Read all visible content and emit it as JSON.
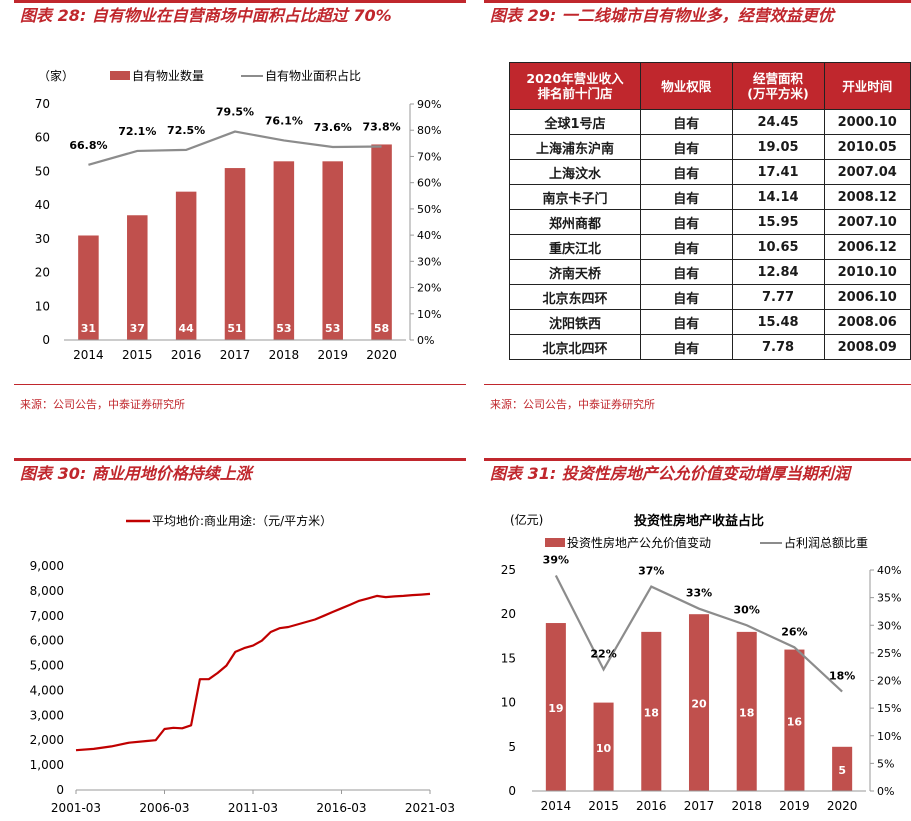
{
  "panels": {
    "p28": {
      "title": "图表 28:  自有物业在自营商场中面积占比超过 70%",
      "source": "来源：公司公告，中泰证券研究所"
    },
    "p29": {
      "title": "图表 29:  一二线城市自有物业多，经营效益更优",
      "source": "来源：公司公告，中泰证券研究所"
    },
    "p30": {
      "title": "图表 30:  商业用地价格持续上涨"
    },
    "p31": {
      "title": "图表 31:  投资性房地产公允价值变动增厚当期利润"
    }
  },
  "table29": {
    "headers": [
      "2020年营业收入\n排名前十门店",
      "物业权限",
      "经营面积\n(万平方米)",
      "开业时间"
    ],
    "rows": [
      [
        "全球1号店",
        "自有",
        "24.45",
        "2000.10"
      ],
      [
        "上海浦东沪南",
        "自有",
        "19.05",
        "2010.05"
      ],
      [
        "上海汶水",
        "自有",
        "17.41",
        "2007.04"
      ],
      [
        "南京卡子门",
        "自有",
        "14.14",
        "2008.12"
      ],
      [
        "郑州商都",
        "自有",
        "15.95",
        "2007.10"
      ],
      [
        "重庆江北",
        "自有",
        "10.65",
        "2006.12"
      ],
      [
        "济南天桥",
        "自有",
        "12.84",
        "2010.10"
      ],
      [
        "北京东四环",
        "自有",
        "7.77",
        "2006.10"
      ],
      [
        "沈阳铁西",
        "自有",
        "15.48",
        "2008.06"
      ],
      [
        "北京北四环",
        "自有",
        "7.78",
        "2008.09"
      ]
    ]
  },
  "chart_data": [
    {
      "type": "bar",
      "categories": [
        "2014",
        "2015",
        "2016",
        "2017",
        "2018",
        "2019",
        "2020"
      ],
      "series": [
        {
          "name": "自有物业数量",
          "kind": "bar",
          "axis": "left",
          "color": "#c0504d",
          "values": [
            31,
            37,
            44,
            51,
            53,
            53,
            58
          ]
        },
        {
          "name": "自有物业面积占比",
          "kind": "line",
          "axis": "right",
          "color": "#8c8c8c",
          "values": [
            66.8,
            72.1,
            72.5,
            79.5,
            76.1,
            73.6,
            73.8
          ],
          "labels": [
            "66.8%",
            "72.1%",
            "72.5%",
            "79.5%",
            "76.1%",
            "73.6%",
            "73.8%"
          ]
        }
      ],
      "ylabel_left": "（家）",
      "ylim_left": [
        0,
        70
      ],
      "yticks_left": [
        "0",
        "10",
        "20",
        "30",
        "40",
        "50",
        "60",
        "70"
      ],
      "ylim_right": [
        0,
        90
      ],
      "yticks_right": [
        "0%",
        "10%",
        "20%",
        "30%",
        "40%",
        "50%",
        "60%",
        "70%",
        "80%",
        "90%"
      ],
      "legend": "top",
      "grid": false
    },
    {
      "type": "line",
      "series": [
        {
          "name": "平均地价:商业用途:（元/平方米）",
          "color": "#c00000",
          "x": [
            "2001-03",
            "2002-03",
            "2003-03",
            "2004-03",
            "2005-03",
            "2005-09",
            "2006-03",
            "2006-09",
            "2007-03",
            "2007-09",
            "2008-03",
            "2008-09",
            "2009-03",
            "2009-09",
            "2010-03",
            "2010-09",
            "2011-03",
            "2011-09",
            "2012-03",
            "2012-09",
            "2013-03",
            "2013-09",
            "2014-03",
            "2014-09",
            "2015-03",
            "2015-09",
            "2016-03",
            "2016-09",
            "2017-03",
            "2017-09",
            "2018-03",
            "2018-09",
            "2019-03",
            "2019-09",
            "2020-03",
            "2020-09",
            "2021-03"
          ],
          "y": [
            1600,
            1650,
            1750,
            1900,
            1970,
            2000,
            2450,
            2500,
            2480,
            2600,
            4450,
            4450,
            4700,
            5000,
            5550,
            5700,
            5800,
            6000,
            6350,
            6500,
            6550,
            6650,
            6750,
            6850,
            7000,
            7150,
            7300,
            7450,
            7600,
            7700,
            7800,
            7750,
            7780,
            7800,
            7830,
            7850,
            7880
          ]
        }
      ],
      "xticks": [
        "2001-03",
        "2006-03",
        "2011-03",
        "2016-03",
        "2021-03"
      ],
      "ylim": [
        0,
        9000
      ],
      "yticks": [
        "0",
        "1,000",
        "2,000",
        "3,000",
        "4,000",
        "5,000",
        "6,000",
        "7,000",
        "8,000",
        "9,000"
      ],
      "legend": "top",
      "grid": false
    },
    {
      "type": "bar",
      "title": "投资性房地产收益占比",
      "categories": [
        "2014",
        "2015",
        "2016",
        "2017",
        "2018",
        "2019",
        "2020"
      ],
      "series": [
        {
          "name": "投资性房地产公允价值变动",
          "kind": "bar",
          "axis": "left",
          "color": "#c0504d",
          "values": [
            19,
            10,
            18,
            20,
            18,
            16,
            5
          ]
        },
        {
          "name": "占利润总额比重",
          "kind": "line",
          "axis": "right",
          "color": "#8c8c8c",
          "values": [
            39,
            22,
            37,
            33,
            30,
            26,
            18
          ],
          "labels": [
            "39%",
            "22%",
            "37%",
            "33%",
            "30%",
            "26%",
            "18%"
          ]
        }
      ],
      "ylabel_left": "(亿元)",
      "ylim_left": [
        0,
        25
      ],
      "yticks_left": [
        "0",
        "5",
        "10",
        "15",
        "20",
        "25"
      ],
      "ylim_right": [
        0,
        40
      ],
      "yticks_right": [
        "0%",
        "5%",
        "10%",
        "15%",
        "20%",
        "25%",
        "30%",
        "35%",
        "40%"
      ],
      "legend": "top",
      "grid": false
    }
  ]
}
